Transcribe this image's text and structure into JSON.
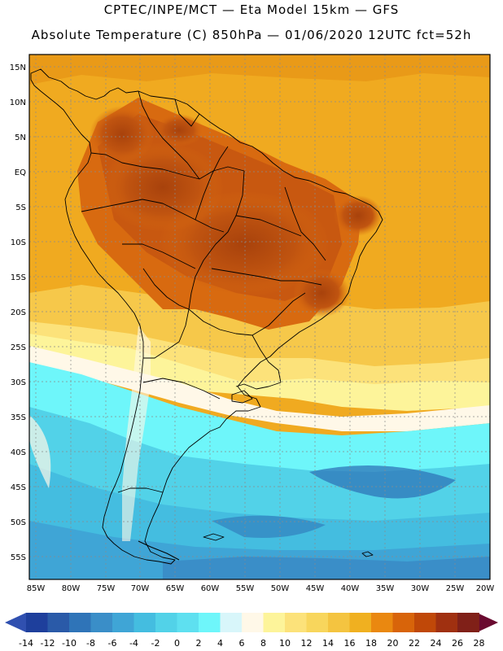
{
  "header": {
    "title_line1": "CPTEC/INPE/MCT  —   Eta Model 15km  —  GFS",
    "title_line2": "Absolute Temperature (C) 850hPa — 01/06/2020 12UTC fct=52h"
  },
  "map": {
    "lon_range": [
      -86,
      -20
    ],
    "lat_range": [
      -59,
      17
    ],
    "lat_ticks": [
      "15N",
      "10N",
      "5N",
      "EQ",
      "5S",
      "10S",
      "15S",
      "20S",
      "25S",
      "30S",
      "35S",
      "40S",
      "45S",
      "50S",
      "55S"
    ],
    "lat_values": [
      15,
      10,
      5,
      0,
      -5,
      -10,
      -15,
      -20,
      -25,
      -30,
      -35,
      -40,
      -45,
      -50,
      -55
    ],
    "lon_ticks": [
      "85W",
      "80W",
      "75W",
      "70W",
      "65W",
      "60W",
      "55W",
      "50W",
      "45W",
      "40W",
      "35W",
      "30W",
      "25W",
      "20W"
    ],
    "lon_values": [
      -85,
      -80,
      -75,
      -70,
      -65,
      -60,
      -55,
      -50,
      -45,
      -40,
      -35,
      -30,
      -25,
      -20
    ]
  },
  "colorbar": {
    "labels": [
      "-14",
      "-12",
      "-10",
      "-8",
      "-6",
      "-4",
      "-2",
      "0",
      "2",
      "4",
      "6",
      "8",
      "10",
      "12",
      "14",
      "16",
      "18",
      "20",
      "22",
      "24",
      "26",
      "28"
    ],
    "colors": [
      "#3050b0",
      "#1e3f9c",
      "#2a5aa8",
      "#2f74b8",
      "#3a8ec8",
      "#3fa5d6",
      "#44bde0",
      "#52d2e8",
      "#5ee0f0",
      "#6ef6fa",
      "#d8f6fa",
      "#fff8e8",
      "#fdf49a",
      "#fce27a",
      "#f8d65c",
      "#f4c440",
      "#f0b020",
      "#ea8810",
      "#d8640a",
      "#c04808",
      "#a03010",
      "#802018",
      "#6a0a30"
    ]
  }
}
